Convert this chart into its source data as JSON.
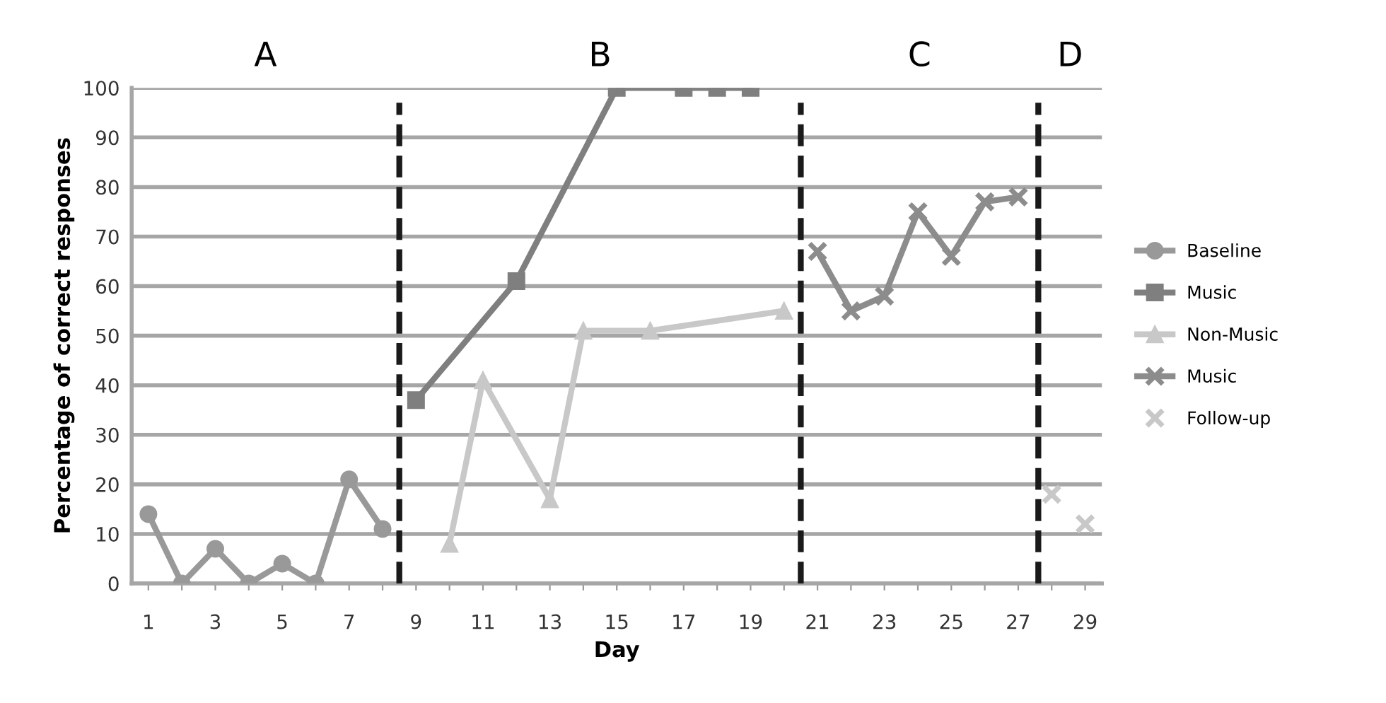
{
  "chart_data": {
    "type": "line",
    "xlabel": "Day",
    "ylabel": "Percentage of correct responses",
    "xlim": [
      0.5,
      29.5
    ],
    "ylim": [
      0,
      100
    ],
    "xticks": [
      1,
      {
        "value": 2,
        "label": null
      },
      3,
      {
        "value": 4,
        "label": null
      },
      5,
      {
        "value": 6,
        "label": null
      },
      7,
      {
        "value": 8,
        "label": null
      },
      9,
      {
        "value": 10,
        "label": null
      },
      11,
      {
        "value": 12,
        "label": null
      },
      13,
      {
        "value": 14,
        "label": null
      },
      15,
      {
        "value": 16,
        "label": null
      },
      17,
      {
        "value": 18,
        "label": null
      },
      19,
      {
        "value": 20,
        "label": null
      },
      21,
      {
        "value": 22,
        "label": null
      },
      23,
      {
        "value": 24,
        "label": null
      },
      25,
      {
        "value": 26,
        "label": null
      },
      27,
      {
        "value": 28,
        "label": null
      },
      29
    ],
    "yticks": [
      0,
      10,
      20,
      30,
      40,
      50,
      60,
      70,
      80,
      90,
      100
    ],
    "grid": "y",
    "legend": "right",
    "line_style": "solid",
    "annotations": [
      "A",
      "B",
      "C",
      "D"
    ],
    "ref_lines": [
      {
        "axis": "x",
        "value": 8.5,
        "label": null,
        "color": "#1a1a1a",
        "line_style": "dashed"
      },
      {
        "axis": "x",
        "value": 20.5,
        "label": null,
        "color": "#1a1a1a",
        "line_style": "dashed"
      },
      {
        "axis": "x",
        "value": 27.6,
        "label": null,
        "color": "#1a1a1a",
        "line_style": "dashed"
      }
    ],
    "series": [
      {
        "name": "Baseline",
        "color": "#999999",
        "marker": "circle",
        "x": [
          1,
          2,
          3,
          4,
          5,
          6,
          7,
          8
        ],
        "values": [
          14,
          0,
          7,
          0,
          4,
          0,
          21,
          11
        ]
      },
      {
        "name": "Music",
        "color": "#7f7f7f",
        "marker": "square",
        "x": [
          9,
          12,
          15,
          17,
          18,
          19
        ],
        "values": [
          37,
          61,
          100,
          100,
          100,
          100
        ]
      },
      {
        "name": "Non-Music",
        "color": "#c8c8c8",
        "marker": "triangle",
        "x": [
          10,
          11,
          13,
          14,
          16,
          20
        ],
        "values": [
          8,
          41,
          17,
          51,
          51,
          55
        ]
      },
      {
        "name": "Music",
        "color": "#8c8c8c",
        "marker": "cross",
        "x": [
          21,
          22,
          23,
          24,
          25,
          26,
          27
        ],
        "values": [
          67,
          55,
          58,
          75,
          66,
          77,
          78
        ]
      },
      {
        "name": "Follow-up",
        "type": "scatter",
        "color": "#c8c8c8",
        "marker": "cross",
        "x": [
          28,
          29
        ],
        "values": [
          18,
          12
        ]
      }
    ]
  }
}
